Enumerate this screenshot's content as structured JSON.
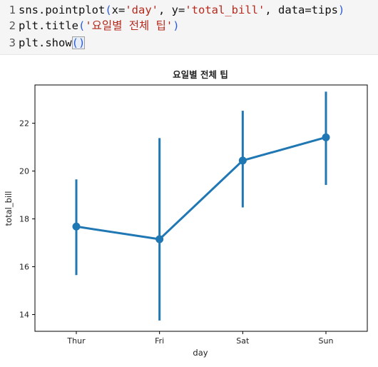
{
  "code": {
    "lines": [
      {
        "num": "1",
        "tokens": [
          {
            "t": "sns.pointplot",
            "c": "plain"
          },
          {
            "t": "(",
            "c": "paren"
          },
          {
            "t": "x=",
            "c": "plain"
          },
          {
            "t": "'day'",
            "c": "str"
          },
          {
            "t": ", y=",
            "c": "plain"
          },
          {
            "t": "'total_bill'",
            "c": "str"
          },
          {
            "t": ", data=tips",
            "c": "plain"
          },
          {
            "t": ")",
            "c": "paren"
          }
        ]
      },
      {
        "num": "2",
        "tokens": [
          {
            "t": "plt.title",
            "c": "plain"
          },
          {
            "t": "(",
            "c": "paren"
          },
          {
            "t": "'요일별 전체 팁'",
            "c": "str"
          },
          {
            "t": ")",
            "c": "paren"
          }
        ]
      },
      {
        "num": "3",
        "tokens": [
          {
            "t": "plt.show",
            "c": "plain"
          },
          {
            "t": "()",
            "c": "paren",
            "cursor": true
          }
        ]
      }
    ]
  },
  "chart_data": {
    "type": "line",
    "title": "요일별 전체 팁",
    "xlabel": "day",
    "ylabel": "total_bill",
    "categories": [
      "Thur",
      "Fri",
      "Sat",
      "Sun"
    ],
    "series": [
      {
        "values": [
          17.68,
          17.15,
          20.44,
          21.41
        ],
        "ci_low": [
          15.65,
          13.75,
          18.48,
          19.42
        ],
        "ci_high": [
          19.65,
          21.38,
          22.52,
          23.32
        ]
      }
    ],
    "ylim": [
      13.3,
      23.6
    ],
    "yticks": [
      14,
      16,
      18,
      20,
      22
    ],
    "grid": false,
    "color": "#1f77b4"
  }
}
